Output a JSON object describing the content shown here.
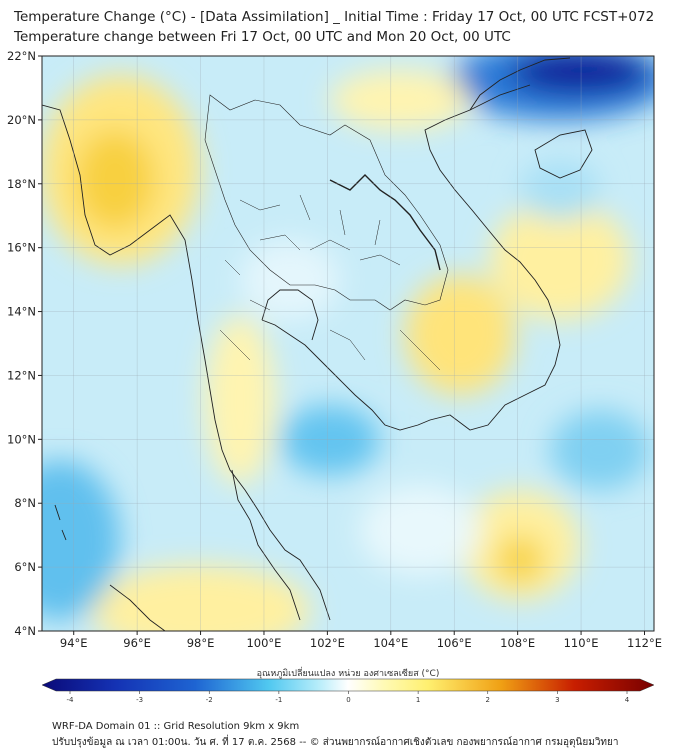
{
  "header": {
    "title_line1": "Temperature Change (°C) - [Data Assimilation] _ Initial Time : Friday 17 Oct, 00 UTC FCST+072",
    "title_line2": "Temperature change between Fri 17 Oct, 00 UTC and Mon 20 Oct, 00 UTC"
  },
  "map": {
    "lat_labels": [
      "22°N",
      "20°N",
      "18°N",
      "16°N",
      "14°N",
      "12°N",
      "10°N",
      "8°N",
      "6°N",
      "4°N"
    ],
    "lon_labels": [
      "94°E",
      "96°E",
      "98°E",
      "100°E",
      "102°E",
      "104°E",
      "106°E",
      "108°E",
      "110°E",
      "112°E"
    ],
    "lat_range": [
      4,
      22
    ],
    "lon_range": [
      93,
      112.3
    ]
  },
  "colorbar": {
    "label": "อุณหภูมิเปลี่ยนแปลง หน่วย องศาเซลเซียส (°C)",
    "ticks": [
      "-4",
      "-3",
      "-2",
      "-1",
      "0",
      "1",
      "2",
      "3",
      "4"
    ],
    "colors": {
      "deep_cold": "#0a0a78",
      "cold": "#1e64d2",
      "cool": "#50c8f0",
      "neutral": "#ffffff",
      "warm": "#fff070",
      "hot": "#f0a014",
      "very_hot": "#c81e00",
      "extreme": "#780000"
    }
  },
  "footer": {
    "line1": "WRF-DA Domain 01 :: Grid Resolution 9km x 9km",
    "line2": "ปรับปรุงข้อมูล ณ เวลา 01:00น. วัน ศ. ที่ 17 ต.ค. 2568 -- © ส่วนพยากรณ์อากาศเชิงตัวเลข กองพยากรณ์อากาศ กรมอุตุนิยมวิทยา"
  }
}
